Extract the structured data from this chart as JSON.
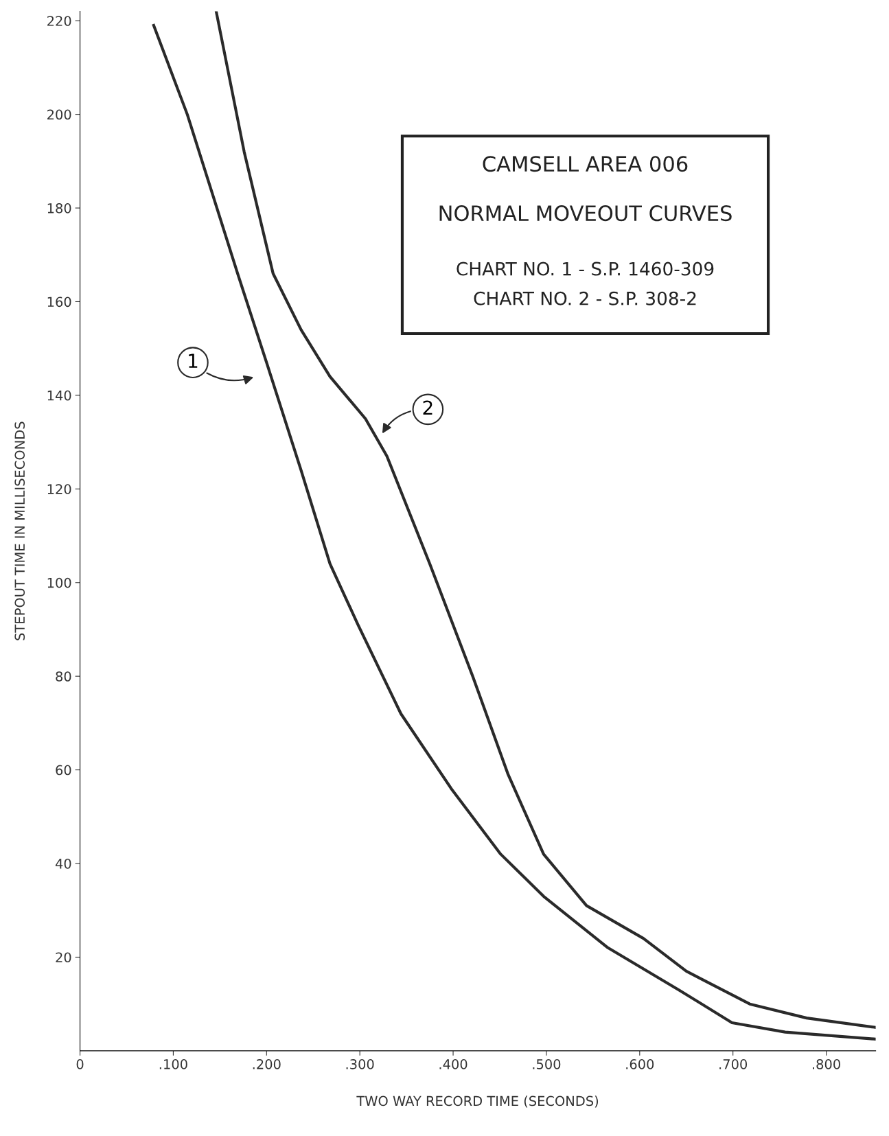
{
  "chart_data": {
    "type": "line",
    "title": "CAMSELL AREA 006",
    "subtitle": "NORMAL MOVEOUT CURVES",
    "annotations": [
      "CHART NO. 1 - S.P. 1460-309",
      "CHART NO. 2 - S.P. 308-2"
    ],
    "xlabel": "TWO WAY RECORD TIME (SECONDS)",
    "ylabel": "STEPOUT TIME IN MILLISECONDS",
    "xlim": [
      0,
      0.853
    ],
    "ylim": [
      0,
      222
    ],
    "xticks": [
      0,
      {
        "value": 0.1,
        "label": ".100"
      },
      {
        "value": 0.2,
        "label": ".200"
      },
      {
        "value": 0.3,
        "label": ".300"
      },
      {
        "value": 0.4,
        "label": ".400"
      },
      {
        "value": 0.5,
        "label": ".500"
      },
      {
        "value": 0.6,
        "label": ".600"
      },
      {
        "value": 0.7,
        "label": ".700"
      },
      {
        "value": 0.8,
        "label": ".800"
      }
    ],
    "yticks": [
      20,
      40,
      60,
      80,
      100,
      120,
      140,
      160,
      180,
      200,
      220
    ],
    "grid": false,
    "marker": "none",
    "line_style": "solid",
    "series": [
      {
        "name": "1",
        "color": "#2a2a2a",
        "x": [
          0.079,
          0.115,
          0.169,
          0.2,
          0.237,
          0.268,
          0.298,
          0.344,
          0.398,
          0.451,
          0.497,
          0.566,
          0.642,
          0.699,
          0.756,
          0.853
        ],
        "values": [
          219,
          200,
          166,
          147,
          124,
          104,
          91,
          72,
          56,
          42,
          33,
          22,
          13,
          6,
          4,
          2.5
        ]
      },
      {
        "name": "2",
        "color": "#2a2a2a",
        "x": [
          0.146,
          0.176,
          0.207,
          0.237,
          0.268,
          0.306,
          0.329,
          0.375,
          0.421,
          0.459,
          0.497,
          0.543,
          0.604,
          0.65,
          0.718,
          0.779,
          0.853
        ],
        "values": [
          222,
          192,
          166,
          154,
          144,
          135,
          127,
          104,
          80,
          59,
          42,
          31,
          24,
          17,
          10,
          7,
          5
        ]
      }
    ]
  }
}
